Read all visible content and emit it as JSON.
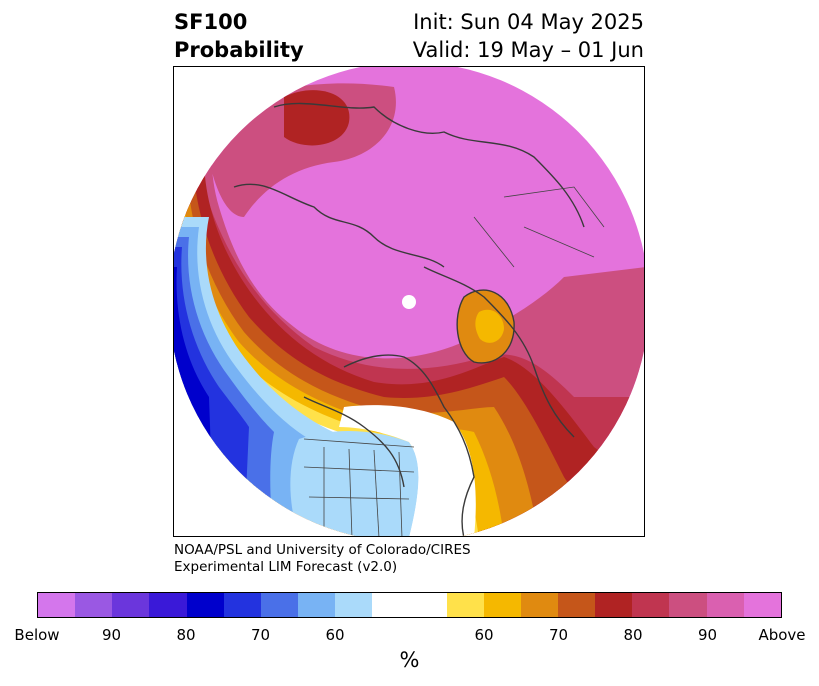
{
  "header": {
    "title_line1": "SF100",
    "title_line2": "Probability",
    "init_line": "Init: Sun 04 May 2025",
    "valid_line": "Valid: 19 May – 01 Jun"
  },
  "credit": {
    "line1": "NOAA/PSL and University of Colorado/CIRES",
    "line2": "Experimental LIM Forecast (v2.0)"
  },
  "colorbar": {
    "unit": "%",
    "colors": [
      "#d476ec",
      "#9a58e3",
      "#6b36dc",
      "#3a19d8",
      "#0000cc",
      "#2333df",
      "#4a70e8",
      "#78b3f4",
      "#aadafa",
      "#ffffff",
      "#ffe14a",
      "#f5b800",
      "#e08a10",
      "#c5561a",
      "#b02323",
      "#c03550",
      "#cc4f80",
      "#da60b0",
      "#e473dc"
    ],
    "widths": [
      1,
      1,
      1,
      1,
      1,
      1,
      1,
      1,
      1,
      2,
      1,
      1,
      1,
      1,
      1,
      1,
      1,
      1,
      1
    ],
    "labels": [
      "Below",
      "90",
      "80",
      "70",
      "60",
      "60",
      "70",
      "80",
      "90",
      "Above"
    ],
    "label_positions": [
      0,
      2,
      4,
      6,
      8,
      12,
      14,
      16,
      18,
      20
    ]
  },
  "map": {
    "projection": "north-polar-stereographic",
    "dominant_category": "Above",
    "pole_marker": "white-dot"
  }
}
